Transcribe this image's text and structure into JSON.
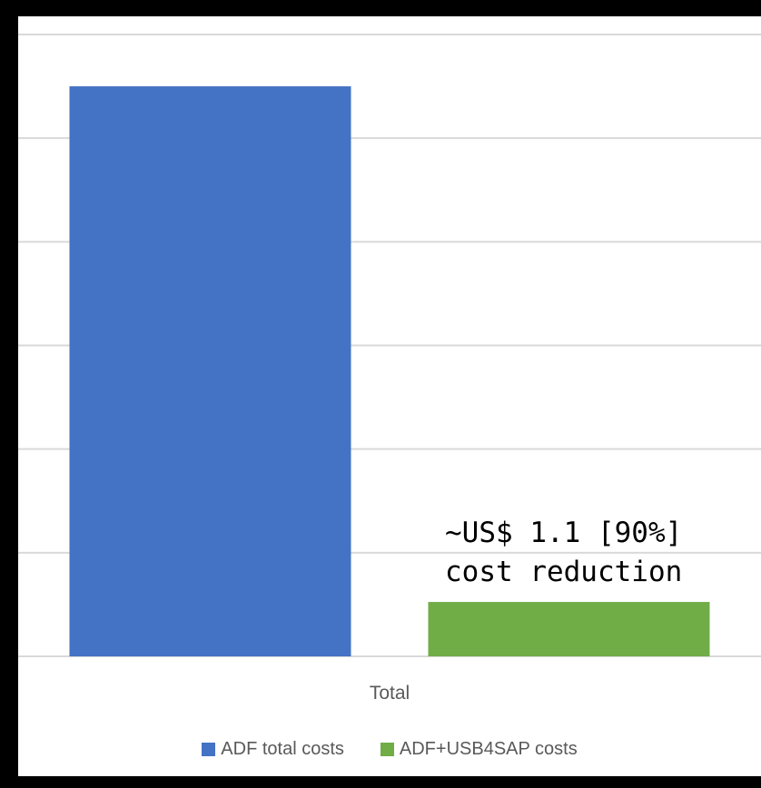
{
  "chart_data": {
    "type": "bar",
    "title": "",
    "categories": [
      "Total"
    ],
    "series": [
      {
        "name": "ADF total costs",
        "values": [
          11.0
        ],
        "color": "#4472c4"
      },
      {
        "name": "ADF+USB4SAP costs",
        "values": [
          1.05
        ],
        "color": "#70ad47"
      }
    ],
    "ylim": [
      0,
      12
    ],
    "y_gridline_step": 2,
    "y_tick_labels_shown": false,
    "grid": true,
    "legend_position": "bottom",
    "annotation": {
      "lines": [
        "~US$ 1.1 [90%]",
        "cost reduction"
      ],
      "target_series": "ADF+USB4SAP costs"
    }
  }
}
